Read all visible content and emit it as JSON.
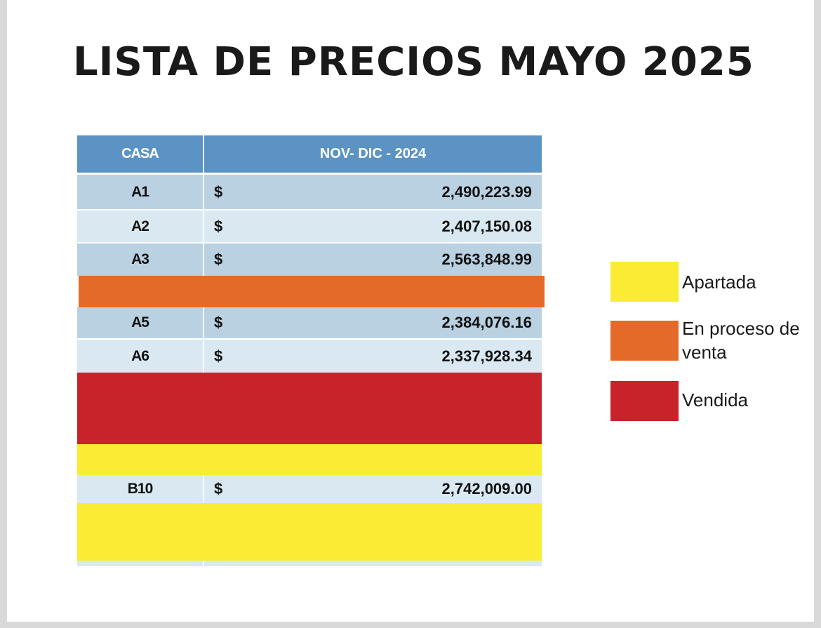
{
  "title": "LISTA DE PRECIOS MAYO 2025",
  "colors": {
    "header": "#5b93c4",
    "row_dark": "#bad1e2",
    "row_light": "#d9e8f1",
    "apartada": "#faec32",
    "en_proceso": "#e36a29",
    "vendida": "#c8232a"
  },
  "table": {
    "headers": {
      "casa": "CASA",
      "precio": "NOV- DIC - 2024"
    },
    "rows": [
      {
        "casa": "A1",
        "currency": "$",
        "price": "2,490,223.99"
      },
      {
        "casa": "A2",
        "currency": "$",
        "price": "2,407,150.08"
      },
      {
        "casa": "A3",
        "currency": "$",
        "price": "2,563,848.99"
      },
      {
        "casa": "A5",
        "currency": "$",
        "price": "2,384,076.16"
      },
      {
        "casa": "A6",
        "currency": "$",
        "price": "2,337,928.34"
      },
      {
        "casa": "B10",
        "currency": "$",
        "price": "2,742,009.00"
      }
    ]
  },
  "legend": [
    {
      "label": "Apartada",
      "color": "#faec32"
    },
    {
      "label": "En proceso de venta",
      "color": "#e36a29"
    },
    {
      "label": "Vendida",
      "color": "#c8232a"
    }
  ]
}
